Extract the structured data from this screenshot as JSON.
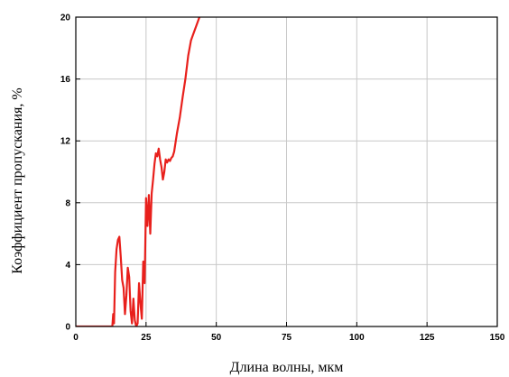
{
  "chart_data": {
    "type": "line",
    "title": "",
    "xlabel": "Длина волны, мкм",
    "ylabel": "Коэффициент пропускания, %",
    "xlim": [
      0,
      150
    ],
    "ylim": [
      0,
      20
    ],
    "x_ticks": [
      "0",
      "25",
      "50",
      "75",
      "100",
      "125",
      "150"
    ],
    "y_ticks": [
      "0",
      "4",
      "8",
      "12",
      "16",
      "20"
    ],
    "grid": true,
    "legend": "none",
    "series": [
      {
        "color": "#e8201c",
        "x": [
          0,
          13,
          13.3,
          13.6,
          14.0,
          14.5,
          15.0,
          15.5,
          16.0,
          16.5,
          17.0,
          17.5,
          18.0,
          18.5,
          19.0,
          19.5,
          20.0,
          20.5,
          21.0,
          21.5,
          22.0,
          22.5,
          23.0,
          23.5,
          24.0,
          24.5,
          25.0,
          25.5,
          26.0,
          26.5,
          27.0,
          27.5,
          28.0,
          28.5,
          29.0,
          29.5,
          30.0,
          30.5,
          31.0,
          31.5,
          32.0,
          32.5,
          33.0,
          33.5,
          34.0,
          34.5,
          35.0,
          36.0,
          37.0,
          38.0,
          39.0,
          40.0,
          41.0,
          42.0,
          43.0,
          44.0,
          44.5,
          45.0,
          45.5,
          46.0,
          46.5,
          47.0
        ],
        "y": [
          0,
          0,
          0.8,
          0.2,
          3.5,
          5.0,
          5.6,
          5.8,
          4.5,
          3.0,
          2.5,
          0.8,
          2.0,
          3.8,
          3.2,
          1.0,
          0.2,
          1.8,
          0.4,
          0.0,
          0.2,
          2.8,
          1.5,
          0.5,
          4.2,
          2.8,
          8.3,
          6.5,
          8.5,
          6.0,
          8.6,
          9.5,
          10.5,
          11.2,
          11.0,
          11.5,
          10.8,
          10.3,
          9.5,
          10.0,
          10.8,
          10.6,
          10.8,
          10.7,
          10.9,
          11.0,
          11.3,
          12.5,
          13.5,
          14.8,
          16.0,
          17.5,
          18.5,
          19.0,
          19.5,
          20.0,
          20.3,
          20.6,
          20.8,
          21.0,
          21.2,
          21.5
        ]
      }
    ]
  }
}
